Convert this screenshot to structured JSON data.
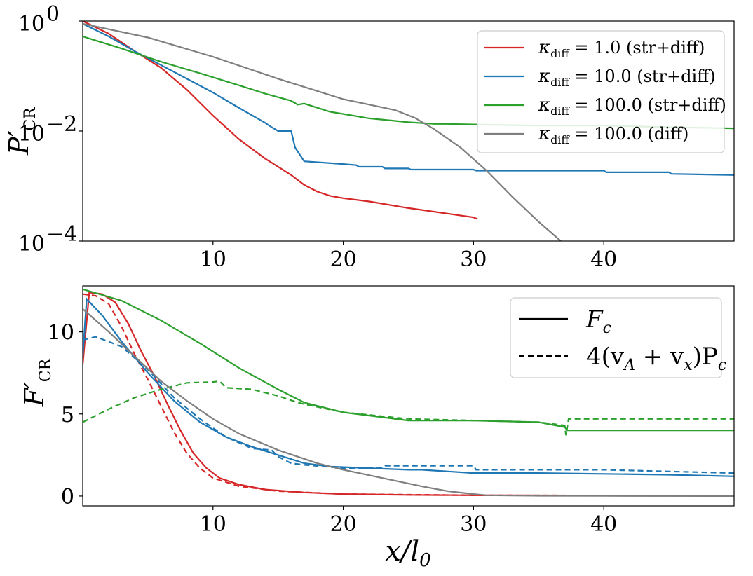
{
  "chart_data": [
    {
      "type": "line",
      "yscale": "log",
      "xlim": [
        0,
        50
      ],
      "ylim_exp": [
        -4,
        0
      ],
      "xticks": [
        "10",
        "20",
        "30",
        "40"
      ],
      "yticks": [
        {
          "base": "10",
          "exp": "0"
        },
        {
          "base": "10",
          "exp": "−2"
        },
        {
          "base": "10",
          "exp": "−4"
        }
      ],
      "ylabel": {
        "main": "P",
        "prime": "′",
        "sub": "CR"
      },
      "legend": {
        "position": "top-right",
        "entries": [
          {
            "sym": "κ",
            "sub": "diff",
            "text": " = 1.0 (str+diff)",
            "color": "#d62728"
          },
          {
            "sym": "κ",
            "sub": "diff",
            "text": " = 10.0 (str+diff)",
            "color": "#1f77b4"
          },
          {
            "sym": "κ",
            "sub": "diff",
            "text": " = 100.0 (str+diff)",
            "color": "#2ca02c"
          },
          {
            "sym": "κ",
            "sub": "diff",
            "text": " = 100.0 (diff)",
            "color": "#7f7f7f"
          }
        ]
      },
      "series": [
        {
          "name": "κdiff = 1.0 (str+diff)",
          "color": "#d62728",
          "x": [
            0,
            2,
            4,
            6,
            8,
            10,
            12,
            14,
            16,
            17,
            18,
            19,
            20,
            22,
            25,
            28,
            30,
            30.3
          ],
          "log10y": [
            0.0,
            -0.23,
            -0.55,
            -0.85,
            -1.25,
            -1.72,
            -2.15,
            -2.5,
            -2.8,
            -2.98,
            -3.1,
            -3.18,
            -3.22,
            -3.28,
            -3.4,
            -3.5,
            -3.57,
            -3.6
          ]
        },
        {
          "name": "κdiff = 10.0 (str+diff)",
          "color": "#1f77b4",
          "x": [
            0,
            2,
            4,
            6,
            8,
            10,
            12,
            14,
            14.5,
            15,
            15.5,
            16,
            16.3,
            17,
            20,
            21,
            21.2,
            23,
            23.2,
            25,
            25.2,
            30,
            30.2,
            40,
            40.2,
            45,
            45.2,
            50
          ],
          "log10y": [
            -0.05,
            -0.28,
            -0.55,
            -0.8,
            -1.05,
            -1.3,
            -1.58,
            -1.85,
            -1.93,
            -2.0,
            -2.0,
            -2.0,
            -2.3,
            -2.55,
            -2.6,
            -2.62,
            -2.65,
            -2.65,
            -2.68,
            -2.68,
            -2.7,
            -2.7,
            -2.72,
            -2.72,
            -2.75,
            -2.75,
            -2.78,
            -2.8
          ]
        },
        {
          "name": "κdiff = 100.0 (str+diff)",
          "color": "#2ca02c",
          "x": [
            0,
            3,
            6,
            9,
            12,
            14,
            16,
            16.5,
            17,
            19,
            22,
            25,
            27,
            28,
            30,
            35,
            40,
            45,
            50
          ],
          "log10y": [
            -0.28,
            -0.5,
            -0.74,
            -0.95,
            -1.17,
            -1.32,
            -1.45,
            -1.52,
            -1.5,
            -1.65,
            -1.77,
            -1.84,
            -1.87,
            -1.87,
            -1.88,
            -1.9,
            -1.9,
            -1.93,
            -1.95
          ]
        },
        {
          "name": "κdiff = 100.0 (diff)",
          "color": "#7f7f7f",
          "x": [
            0,
            5,
            10,
            15,
            20,
            22,
            24,
            25.5,
            27,
            29,
            31,
            33,
            35,
            36.7
          ],
          "log10y": [
            -0.05,
            -0.3,
            -0.65,
            -1.05,
            -1.42,
            -1.52,
            -1.62,
            -1.76,
            -1.97,
            -2.3,
            -2.72,
            -3.2,
            -3.65,
            -4.0
          ]
        }
      ]
    },
    {
      "type": "line",
      "xlim": [
        0,
        50
      ],
      "ylim": [
        -0.6,
        12.8
      ],
      "xticks": [
        "10",
        "20",
        "30",
        "40"
      ],
      "yticks": [
        "0",
        "5",
        "10"
      ],
      "ylabel": {
        "main": "F",
        "prime": "′",
        "sub": "CR"
      },
      "xlabel": "x/l",
      "xlabel_sub": "0",
      "legend": {
        "position": "top-right",
        "entries": [
          {
            "label": "F",
            "sub": "c",
            "style": "solid"
          },
          {
            "label": "4(v",
            "sub1": "A",
            "mid": " + v",
            "sub2": "x",
            "end": ")P",
            "sub3": "c",
            "style": "dashed"
          }
        ]
      },
      "series": [
        {
          "name": "κdiff = 1.0 solid",
          "color": "#d62728",
          "dash": false,
          "x": [
            0,
            0.5,
            1.5,
            2.5,
            3.5,
            4.5,
            5.5,
            6.5,
            7.5,
            8.5,
            9.5,
            10.5,
            12,
            14,
            17,
            20,
            25,
            30,
            40,
            50
          ],
          "y": [
            8.0,
            12.4,
            12.3,
            11.8,
            10.5,
            8.8,
            7.3,
            5.6,
            4.0,
            2.6,
            1.7,
            1.1,
            0.7,
            0.4,
            0.22,
            0.12,
            0.07,
            0.05,
            0.03,
            0.02
          ]
        },
        {
          "name": "κdiff = 1.0 dashed",
          "color": "#d62728",
          "dash": true,
          "x": [
            0,
            1,
            2,
            3,
            4,
            5,
            6,
            7,
            8,
            9,
            10,
            12,
            15,
            20,
            30,
            50
          ],
          "y": [
            12.3,
            12.2,
            11.7,
            10.3,
            8.6,
            7.1,
            5.5,
            3.9,
            2.6,
            1.7,
            1.1,
            0.6,
            0.3,
            0.12,
            0.05,
            0.02
          ]
        },
        {
          "name": "κdiff = 10.0 solid",
          "color": "#1f77b4",
          "dash": false,
          "x": [
            0,
            0.3,
            1.5,
            3,
            5,
            7,
            9,
            11,
            13,
            15,
            17,
            19,
            22,
            25,
            26,
            30,
            35,
            40,
            45,
            50
          ],
          "y": [
            8.5,
            12.0,
            11.0,
            9.4,
            7.5,
            5.8,
            4.5,
            3.6,
            3.0,
            2.5,
            2.0,
            1.8,
            1.7,
            1.6,
            1.6,
            1.4,
            1.4,
            1.35,
            1.3,
            1.2
          ]
        },
        {
          "name": "κdiff = 10.0 dashed",
          "color": "#1f77b4",
          "dash": true,
          "x": [
            0,
            1,
            3,
            5,
            7,
            9,
            11,
            13,
            14.5,
            15,
            16,
            17,
            20,
            23,
            23.2,
            30,
            30.2,
            40,
            45,
            50
          ],
          "y": [
            9.5,
            9.7,
            9.1,
            7.7,
            6.0,
            4.7,
            3.6,
            2.9,
            2.8,
            2.4,
            2.0,
            1.9,
            1.7,
            1.7,
            1.85,
            1.85,
            1.6,
            1.6,
            1.5,
            1.4
          ]
        },
        {
          "name": "κdiff = 100.0 solid",
          "color": "#2ca02c",
          "dash": false,
          "x": [
            0,
            3,
            6,
            9,
            12,
            15,
            17,
            20,
            25,
            30,
            35,
            37,
            37.2,
            40,
            50
          ],
          "y": [
            12.6,
            11.9,
            10.7,
            9.3,
            7.8,
            6.5,
            5.7,
            5.1,
            4.6,
            4.6,
            4.5,
            4.2,
            4.0,
            4.0,
            4.0
          ]
        },
        {
          "name": "κdiff = 100.0 dashed",
          "color": "#2ca02c",
          "dash": true,
          "x": [
            0,
            2,
            4,
            6,
            8,
            10,
            10.5,
            11,
            13,
            15,
            16.5,
            17,
            20,
            25,
            30,
            35,
            37,
            37.1,
            37.3,
            40,
            50
          ],
          "y": [
            4.5,
            5.3,
            6.0,
            6.5,
            6.9,
            6.95,
            7.0,
            6.6,
            6.5,
            6.1,
            5.7,
            5.6,
            5.1,
            4.7,
            4.6,
            4.5,
            4.3,
            3.7,
            4.7,
            4.7,
            4.7
          ]
        },
        {
          "name": "κdiff = 100.0 (diff) solid",
          "color": "#7f7f7f",
          "dash": false,
          "x": [
            0,
            2,
            4,
            6,
            8,
            10,
            12,
            15,
            18,
            20,
            23,
            26,
            28,
            30,
            31,
            35,
            40,
            50
          ],
          "y": [
            11.4,
            10.0,
            8.5,
            7.0,
            5.8,
            4.7,
            3.8,
            2.8,
            2.0,
            1.6,
            1.1,
            0.6,
            0.3,
            0.12,
            0.05,
            0.02,
            0.01,
            0.0
          ]
        }
      ]
    }
  ]
}
